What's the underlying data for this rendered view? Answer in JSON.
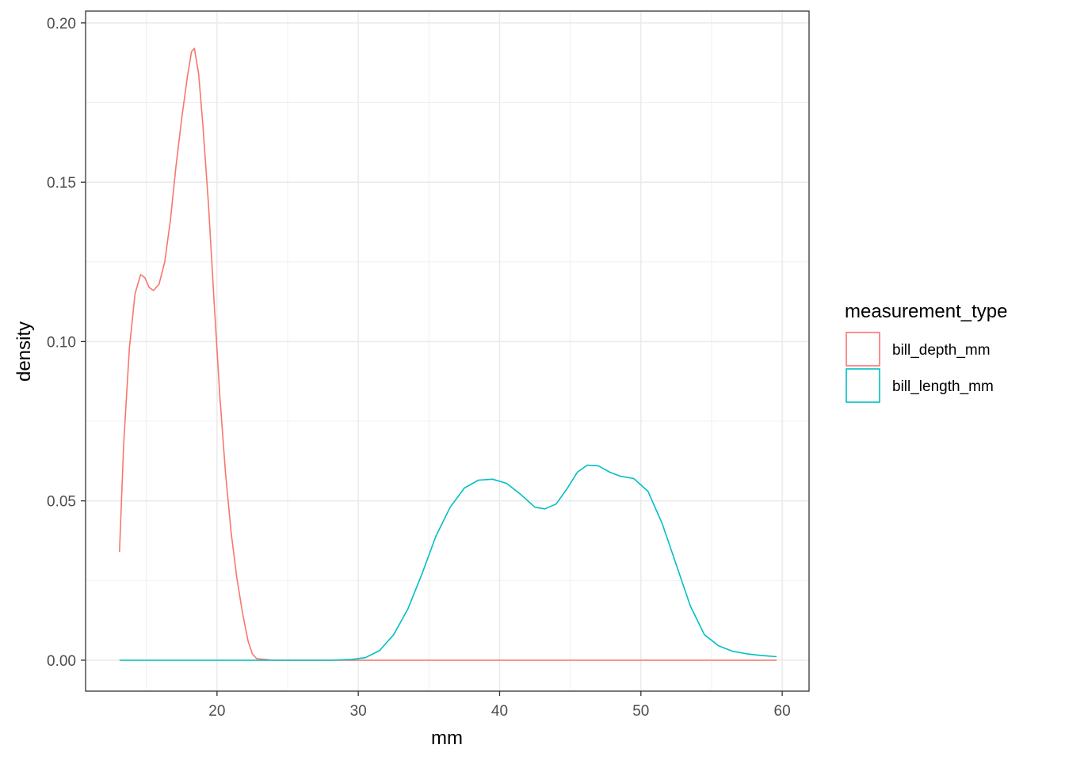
{
  "chart_data": {
    "type": "line",
    "title": "",
    "xlabel": "mm",
    "ylabel": "density",
    "xlim": [
      10.7,
      61.9
    ],
    "ylim": [
      -0.0097,
      0.2037
    ],
    "x_ticks": [
      20,
      30,
      40,
      50,
      60
    ],
    "x_tick_labels": [
      "20",
      "30",
      "40",
      "50",
      "60"
    ],
    "y_ticks": [
      0,
      0.05,
      0.1,
      0.15,
      0.2
    ],
    "y_tick_labels": [
      "0.00",
      "0.05",
      "0.10",
      "0.15",
      "0.20"
    ],
    "x_minor_ticks": [
      15,
      25,
      35,
      45,
      55
    ],
    "y_minor_ticks": [
      0.025,
      0.075,
      0.125,
      0.175
    ],
    "grid": true,
    "legend_title": "measurement_type",
    "legend_position": "right",
    "series": [
      {
        "name": "bill_depth_mm",
        "color": "#F8766D",
        "points": [
          [
            13.1,
            0.034
          ],
          [
            13.4,
            0.068
          ],
          [
            13.8,
            0.098
          ],
          [
            14.2,
            0.115
          ],
          [
            14.6,
            0.121
          ],
          [
            14.9,
            0.12
          ],
          [
            15.2,
            0.117
          ],
          [
            15.5,
            0.116
          ],
          [
            15.9,
            0.118
          ],
          [
            16.3,
            0.125
          ],
          [
            16.7,
            0.138
          ],
          [
            17.1,
            0.155
          ],
          [
            17.5,
            0.17
          ],
          [
            17.9,
            0.183
          ],
          [
            18.2,
            0.191
          ],
          [
            18.4,
            0.192
          ],
          [
            18.7,
            0.184
          ],
          [
            19.0,
            0.168
          ],
          [
            19.4,
            0.143
          ],
          [
            19.8,
            0.112
          ],
          [
            20.2,
            0.083
          ],
          [
            20.6,
            0.059
          ],
          [
            21.0,
            0.04
          ],
          [
            21.4,
            0.026
          ],
          [
            21.8,
            0.015
          ],
          [
            22.2,
            0.006
          ],
          [
            22.5,
            0.002
          ],
          [
            22.8,
            0.0005
          ],
          [
            24.0,
            0.0
          ],
          [
            30.0,
            0.0
          ],
          [
            40.0,
            0.0
          ],
          [
            50.0,
            0.0
          ],
          [
            59.6,
            0.0
          ]
        ]
      },
      {
        "name": "bill_length_mm",
        "color": "#00BFC4",
        "points": [
          [
            13.1,
            0.0
          ],
          [
            20.0,
            0.0
          ],
          [
            28.0,
            0.0
          ],
          [
            29.5,
            0.0002
          ],
          [
            30.5,
            0.0008
          ],
          [
            31.5,
            0.003
          ],
          [
            32.5,
            0.008
          ],
          [
            33.5,
            0.016
          ],
          [
            34.5,
            0.027
          ],
          [
            35.5,
            0.039
          ],
          [
            36.5,
            0.048
          ],
          [
            37.5,
            0.054
          ],
          [
            38.5,
            0.0565
          ],
          [
            39.5,
            0.0568
          ],
          [
            40.5,
            0.0555
          ],
          [
            41.5,
            0.052
          ],
          [
            42.5,
            0.048
          ],
          [
            43.2,
            0.0475
          ],
          [
            44.0,
            0.049
          ],
          [
            44.8,
            0.054
          ],
          [
            45.5,
            0.059
          ],
          [
            46.2,
            0.0612
          ],
          [
            47.0,
            0.061
          ],
          [
            47.8,
            0.059
          ],
          [
            48.5,
            0.0578
          ],
          [
            49.5,
            0.057
          ],
          [
            50.5,
            0.053
          ],
          [
            51.5,
            0.043
          ],
          [
            52.5,
            0.03
          ],
          [
            53.5,
            0.017
          ],
          [
            54.5,
            0.008
          ],
          [
            55.5,
            0.0045
          ],
          [
            56.5,
            0.0028
          ],
          [
            57.5,
            0.002
          ],
          [
            58.5,
            0.0015
          ],
          [
            59.6,
            0.0011
          ]
        ]
      }
    ]
  }
}
